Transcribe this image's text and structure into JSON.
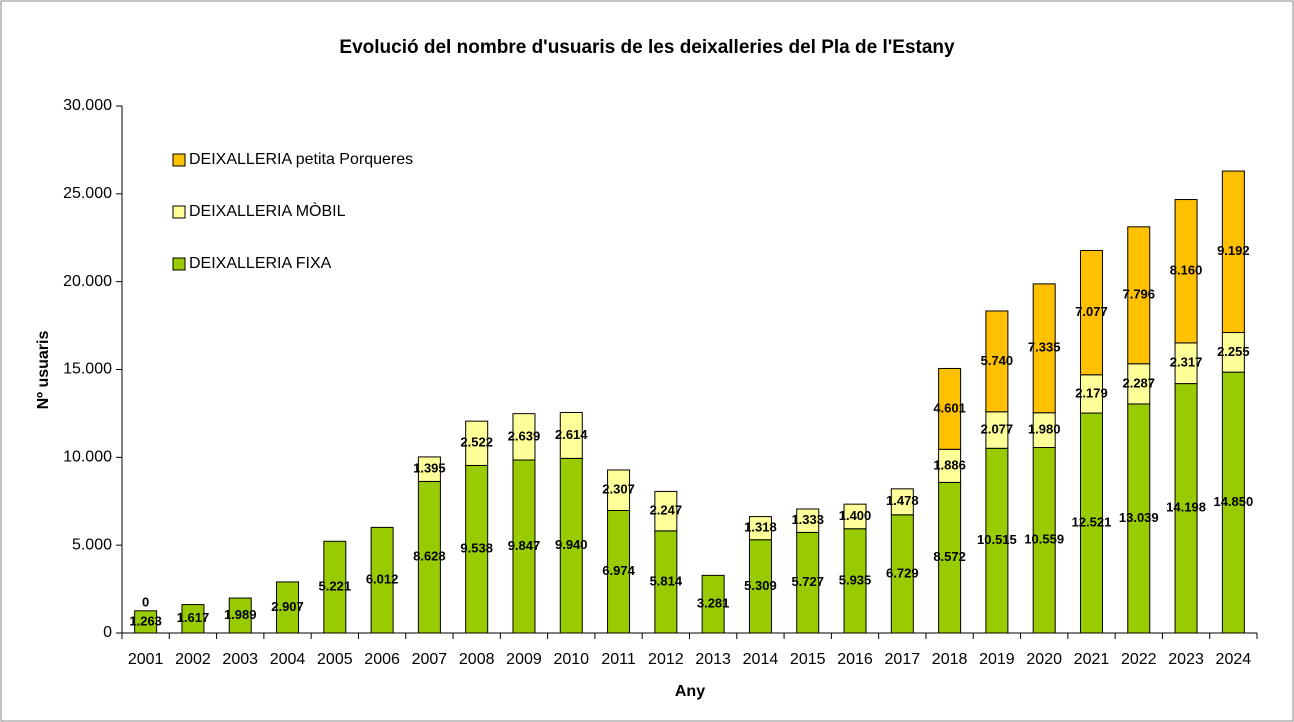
{
  "chart_data": {
    "type": "stacked-bar",
    "title": "Evolució del nombre d'usuaris de les deixalleries del Pla de l'Estany",
    "x_label": "Any",
    "y_label": "Nº usuaris",
    "categories": [
      "2001",
      "2002",
      "2003",
      "2004",
      "2005",
      "2006",
      "2007",
      "2008",
      "2009",
      "2010",
      "2011",
      "2012",
      "2013",
      "2014",
      "2015",
      "2016",
      "2017",
      "2018",
      "2019",
      "2020",
      "2021",
      "2022",
      "2023",
      "2024"
    ],
    "series": [
      {
        "name": "DEIXALLERIA FIXA",
        "color": "#99cc00",
        "values": [
          1263,
          1617,
          1989,
          2907,
          5221,
          6012,
          8628,
          9538,
          9847,
          9940,
          6974,
          5814,
          3281,
          5309,
          5727,
          5935,
          6729,
          8572,
          10515,
          10559,
          12521,
          13039,
          14198,
          14850
        ],
        "value_labels": [
          "1.263",
          "1.617",
          "1.989",
          "2.907",
          "5.221",
          "6.012",
          "8.628",
          "9.538",
          "9.847",
          "9.940",
          "6.974",
          "5.814",
          "3.281",
          "5.309",
          "5.727",
          "5.935",
          "6.729",
          "8.572",
          "10.515",
          "10.559",
          "12.521",
          "13.039",
          "14.198",
          "14.850"
        ]
      },
      {
        "name": "DEIXALLERIA MÒBIL",
        "color": "#ffff99",
        "values": [
          0,
          null,
          null,
          null,
          null,
          null,
          1395,
          2522,
          2639,
          2614,
          2307,
          2247,
          null,
          1318,
          1333,
          1400,
          1478,
          1886,
          2077,
          1980,
          2179,
          2287,
          2317,
          2255
        ],
        "value_labels": [
          "0",
          null,
          null,
          null,
          null,
          null,
          "1.395",
          "2.522",
          "2.639",
          "2.614",
          "2.307",
          "2.247",
          null,
          "1.318",
          "1.333",
          "1.400",
          "1.478",
          "1.886",
          "2.077",
          "1.980",
          "2.179",
          "2.287",
          "2.317",
          "2.255"
        ]
      },
      {
        "name": "DEIXALLERIA petita Porqueres",
        "color": "#ffc000",
        "values": [
          null,
          null,
          null,
          null,
          null,
          null,
          null,
          null,
          null,
          null,
          null,
          null,
          null,
          null,
          null,
          null,
          null,
          4601,
          5740,
          7335,
          7077,
          7796,
          8160,
          9192
        ],
        "value_labels": [
          null,
          null,
          null,
          null,
          null,
          null,
          null,
          null,
          null,
          null,
          null,
          null,
          null,
          null,
          null,
          null,
          null,
          "4.601",
          "5.740",
          "7.335",
          "7.077",
          "7.796",
          "8.160",
          "9.192"
        ]
      }
    ],
    "ylim": [
      0,
      30000
    ],
    "yticks": [
      0,
      {
        "value": 5000,
        "label": "5.000"
      },
      {
        "value": 10000,
        "label": "10.000"
      },
      {
        "value": 15000,
        "label": "15.000"
      },
      {
        "value": 20000,
        "label": "20.000"
      },
      {
        "value": 25000,
        "label": "25.000"
      },
      {
        "value": 30000,
        "label": "30.000"
      }
    ],
    "legend": "upper left"
  }
}
